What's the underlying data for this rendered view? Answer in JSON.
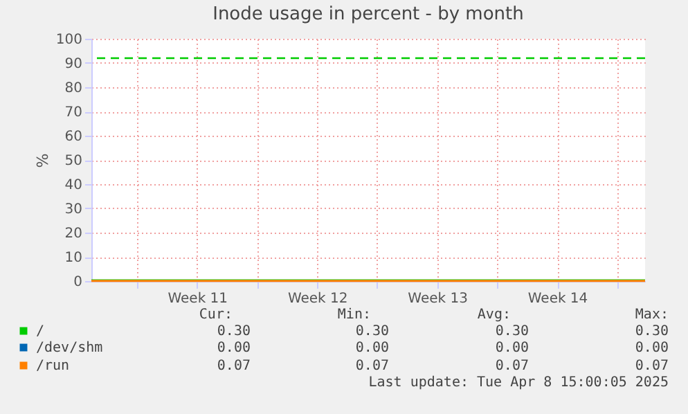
{
  "chart_data": {
    "type": "line",
    "title": "Inode usage in percent - by month",
    "ylabel": "%",
    "xlim": [
      "2025-03-07T08:00",
      "2025-04-08T15:00"
    ],
    "xticks": [
      {
        "value": "2025-03-10",
        "label": null
      },
      {
        "value": "2025-03-13T12:00",
        "label": "Week 11"
      },
      {
        "value": "2025-03-17",
        "label": null
      },
      {
        "value": "2025-03-20T12:00",
        "label": "Week 12"
      },
      {
        "value": "2025-03-24",
        "label": null
      },
      {
        "value": "2025-03-27T12:00",
        "label": "Week 13"
      },
      {
        "value": "2025-03-31",
        "label": null
      },
      {
        "value": "2025-04-03T12:00",
        "label": "Week 14"
      },
      {
        "value": "2025-04-07",
        "label": null
      }
    ],
    "ylim": [
      0,
      100
    ],
    "yticks": [
      0,
      10,
      20,
      30,
      40,
      50,
      60,
      70,
      80,
      90,
      100
    ],
    "grid": true,
    "legend": "bottom",
    "series": [
      {
        "name": "/",
        "color": "#00cc00",
        "x": [
          "2025-03-07T08:00",
          "2025-04-08T15:00"
        ],
        "values": [
          0.3,
          0.3
        ]
      },
      {
        "name": "/dev/shm",
        "color": "#0066b3",
        "values": [
          null,
          null
        ]
      },
      {
        "name": "/run",
        "color": "#ff8000",
        "x": [
          "2025-03-07T08:00",
          "2025-04-08T15:00"
        ],
        "values": [
          0.07,
          0.07
        ]
      }
    ],
    "ref_lines": [
      {
        "axis": "y",
        "value": 92,
        "color": "#00cc00",
        "line_style": "dashed"
      }
    ],
    "annotations": [
      "Cur:",
      "Min:",
      "Avg:",
      "Max:",
      "0.30",
      "0.30",
      "0.30",
      "0.30",
      "0.00",
      "0.00",
      "0.00",
      "0.00",
      "0.07",
      "0.07",
      "0.07",
      "0.07",
      "Last update: Tue Apr  8 15:00:05 2025"
    ]
  }
}
